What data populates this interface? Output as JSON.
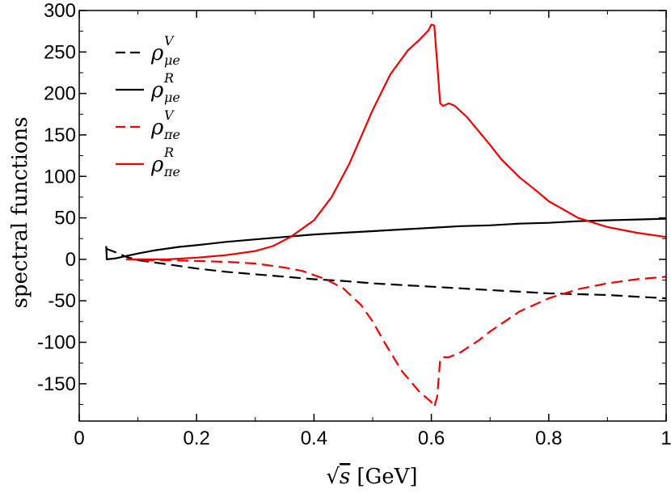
{
  "chart_data": {
    "type": "line",
    "title": "",
    "xlabel_prefix": "√",
    "xlabel_var": "s",
    "xlabel_unit": "[GeV]",
    "ylabel": "spectral functions",
    "xlim": [
      0,
      1
    ],
    "ylim": [
      -195,
      300
    ],
    "xticks": [
      0,
      0.2,
      0.4,
      0.6,
      0.8,
      1
    ],
    "xtick_labels": [
      "0",
      "0.2",
      "0.4",
      "0.6",
      "0.8",
      "1"
    ],
    "yticks": [
      300,
      250,
      200,
      150,
      100,
      50,
      0,
      -50,
      -100,
      -150
    ],
    "ytick_labels": [
      "300",
      "250",
      "200",
      "150",
      "100",
      "50",
      "0",
      "-50",
      "-100",
      "-150"
    ],
    "legend_position": "top-left",
    "grid": false,
    "series": [
      {
        "name": "rho_mue_V",
        "legend_symbol": "ρ",
        "legend_sub": "μe",
        "legend_sup": "V",
        "color": "#000000",
        "dash": true,
        "points": [
          [
            0.045,
            13
          ],
          [
            0.06,
            9
          ],
          [
            0.08,
            3
          ],
          [
            0.1,
            -1
          ],
          [
            0.15,
            -6
          ],
          [
            0.2,
            -11
          ],
          [
            0.25,
            -15
          ],
          [
            0.3,
            -18
          ],
          [
            0.35,
            -21
          ],
          [
            0.4,
            -24
          ],
          [
            0.45,
            -26
          ],
          [
            0.5,
            -29
          ],
          [
            0.55,
            -31
          ],
          [
            0.6,
            -33
          ],
          [
            0.65,
            -35
          ],
          [
            0.7,
            -37
          ],
          [
            0.75,
            -39
          ],
          [
            0.8,
            -41
          ],
          [
            0.85,
            -42
          ],
          [
            0.9,
            -43
          ],
          [
            0.95,
            -45
          ],
          [
            1.0,
            -47
          ]
        ]
      },
      {
        "name": "rho_mue_R",
        "legend_symbol": "ρ",
        "legend_sub": "μe",
        "legend_sup": "R",
        "color": "#000000",
        "dash": false,
        "points": [
          [
            0.046,
            16
          ],
          [
            0.047,
            0
          ],
          [
            0.06,
            1
          ],
          [
            0.08,
            4
          ],
          [
            0.1,
            7
          ],
          [
            0.13,
            11
          ],
          [
            0.17,
            15
          ],
          [
            0.2,
            17
          ],
          [
            0.25,
            21
          ],
          [
            0.3,
            24
          ],
          [
            0.35,
            27
          ],
          [
            0.4,
            30
          ],
          [
            0.45,
            32
          ],
          [
            0.5,
            34
          ],
          [
            0.55,
            36
          ],
          [
            0.6,
            38
          ],
          [
            0.65,
            40
          ],
          [
            0.7,
            41
          ],
          [
            0.75,
            43
          ],
          [
            0.8,
            44
          ],
          [
            0.85,
            46
          ],
          [
            0.9,
            47
          ],
          [
            0.95,
            48
          ],
          [
            1.0,
            49
          ]
        ]
      },
      {
        "name": "rho_pie_V",
        "legend_symbol": "ρ",
        "legend_sub": "πe",
        "legend_sup": "V",
        "color": "#ee0000",
        "dash": true,
        "points": [
          [
            0.08,
            0
          ],
          [
            0.12,
            -1
          ],
          [
            0.15,
            -1
          ],
          [
            0.2,
            -2
          ],
          [
            0.25,
            -3
          ],
          [
            0.3,
            -5
          ],
          [
            0.35,
            -10
          ],
          [
            0.38,
            -14
          ],
          [
            0.42,
            -24
          ],
          [
            0.45,
            -35
          ],
          [
            0.48,
            -55
          ],
          [
            0.5,
            -75
          ],
          [
            0.52,
            -100
          ],
          [
            0.55,
            -135
          ],
          [
            0.58,
            -160
          ],
          [
            0.6,
            -172
          ],
          [
            0.605,
            -178
          ],
          [
            0.61,
            -165
          ],
          [
            0.615,
            -120
          ],
          [
            0.62,
            -118
          ],
          [
            0.63,
            -118
          ],
          [
            0.65,
            -112
          ],
          [
            0.68,
            -98
          ],
          [
            0.7,
            -87
          ],
          [
            0.75,
            -63
          ],
          [
            0.8,
            -47
          ],
          [
            0.85,
            -36
          ],
          [
            0.9,
            -29
          ],
          [
            0.95,
            -24
          ],
          [
            1.0,
            -21
          ]
        ]
      },
      {
        "name": "rho_pie_R",
        "legend_symbol": "ρ",
        "legend_sub": "πe",
        "legend_sup": "R",
        "color": "#ee0000",
        "dash": false,
        "points": [
          [
            0.08,
            0
          ],
          [
            0.1,
            0
          ],
          [
            0.15,
            0
          ],
          [
            0.2,
            2
          ],
          [
            0.25,
            5
          ],
          [
            0.3,
            10
          ],
          [
            0.33,
            16
          ],
          [
            0.36,
            27
          ],
          [
            0.4,
            47
          ],
          [
            0.43,
            75
          ],
          [
            0.46,
            115
          ],
          [
            0.5,
            180
          ],
          [
            0.53,
            223
          ],
          [
            0.56,
            252
          ],
          [
            0.58,
            265
          ],
          [
            0.595,
            276
          ],
          [
            0.6,
            283
          ],
          [
            0.605,
            282
          ],
          [
            0.61,
            235
          ],
          [
            0.615,
            188
          ],
          [
            0.62,
            185
          ],
          [
            0.63,
            188
          ],
          [
            0.64,
            185
          ],
          [
            0.66,
            172
          ],
          [
            0.68,
            155
          ],
          [
            0.7,
            138
          ],
          [
            0.72,
            120
          ],
          [
            0.75,
            99
          ],
          [
            0.78,
            82
          ],
          [
            0.8,
            70
          ],
          [
            0.85,
            50
          ],
          [
            0.9,
            39
          ],
          [
            0.95,
            32
          ],
          [
            1.0,
            27
          ]
        ]
      }
    ]
  }
}
